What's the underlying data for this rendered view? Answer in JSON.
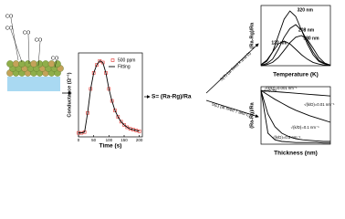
{
  "schematic": {
    "labels": [
      "CO",
      "CO",
      "CO",
      "CO",
      "CO"
    ]
  },
  "formula": "S= (Ra-Rg)/Ra",
  "arrows": [
    "S(T) (at fixed k and D)",
    "S(L) (at fixed T and C)"
  ],
  "chart_data": [
    {
      "type": "line",
      "xlabel": "Time (s)",
      "ylabel": "Conductance (Ω⁻¹)",
      "x": [
        0,
        10,
        20,
        30,
        40,
        50,
        60,
        70,
        80,
        90,
        100,
        110,
        120,
        130,
        140,
        150,
        160,
        170,
        180,
        190,
        200
      ],
      "xlim": [
        0,
        210
      ],
      "xticks": [
        0,
        50,
        100,
        150,
        200
      ],
      "ylim": [
        0,
        1.05
      ],
      "series": [
        {
          "name": "500 ppm",
          "color": "#e0302a",
          "marker": "square",
          "values": [
            0.05,
            0.05,
            0.06,
            0.3,
            0.6,
            0.8,
            0.9,
            0.95,
            0.93,
            0.8,
            0.6,
            0.45,
            0.33,
            0.25,
            0.19,
            0.15,
            0.12,
            0.1,
            0.09,
            0.08,
            0.07
          ]
        },
        {
          "name": "Fitting",
          "color": "#000000",
          "marker": "none",
          "values": [
            0.05,
            0.05,
            0.06,
            0.3,
            0.6,
            0.8,
            0.9,
            0.95,
            0.93,
            0.8,
            0.6,
            0.45,
            0.33,
            0.25,
            0.19,
            0.15,
            0.12,
            0.1,
            0.09,
            0.08,
            0.07
          ]
        }
      ]
    },
    {
      "type": "line",
      "xlabel": "Temperature (K)",
      "ylabel": "(Ra-Rg)/Ra",
      "x": [
        0,
        1,
        2,
        3,
        4,
        5,
        6,
        7,
        8,
        9,
        10,
        11,
        12
      ],
      "xlim": [
        0,
        12
      ],
      "ylim": [
        0,
        1.1
      ],
      "series": [
        {
          "name": "320 nm",
          "color": "#000000",
          "values": [
            0.02,
            0.08,
            0.25,
            0.55,
            0.85,
            1.0,
            0.9,
            0.65,
            0.4,
            0.2,
            0.08,
            0.03,
            0.01
          ]
        },
        {
          "name": "208 nm",
          "color": "#000000",
          "values": [
            0.01,
            0.04,
            0.12,
            0.3,
            0.52,
            0.68,
            0.75,
            0.65,
            0.45,
            0.25,
            0.1,
            0.04,
            0.01
          ]
        },
        {
          "name": "122 nm",
          "color": "#000000",
          "values": [
            0.02,
            0.1,
            0.25,
            0.4,
            0.45,
            0.4,
            0.3,
            0.2,
            0.12,
            0.06,
            0.03,
            0.01,
            0.01
          ]
        },
        {
          "name": "380 nm",
          "color": "#000000",
          "values": [
            0,
            0.02,
            0.06,
            0.15,
            0.28,
            0.42,
            0.52,
            0.55,
            0.48,
            0.32,
            0.15,
            0.05,
            0.01
          ]
        }
      ]
    },
    {
      "type": "line",
      "xlabel": "Thickness (nm)",
      "ylabel": "(Ra-Rg)/Ra",
      "annotation": "a=0.78",
      "x": [
        0,
        1,
        2,
        3,
        4,
        5,
        6,
        7,
        8,
        9,
        10
      ],
      "xlim": [
        0,
        10
      ],
      "ylim": [
        0,
        1.05
      ],
      "series": [
        {
          "name": "√(k/D)=0.001 nm⁻¹",
          "color": "#000000",
          "values": [
            0.98,
            0.97,
            0.96,
            0.95,
            0.94,
            0.93,
            0.92,
            0.91,
            0.9,
            0.89,
            0.88
          ]
        },
        {
          "name": "√(k/D)=0.01 nm⁻¹",
          "color": "#000000",
          "values": [
            0.98,
            0.9,
            0.82,
            0.75,
            0.68,
            0.62,
            0.57,
            0.52,
            0.48,
            0.44,
            0.4
          ]
        },
        {
          "name": "√(k/D)=0.1 nm⁻¹",
          "color": "#000000",
          "values": [
            0.98,
            0.55,
            0.32,
            0.2,
            0.14,
            0.1,
            0.08,
            0.07,
            0.06,
            0.05,
            0.05
          ]
        },
        {
          "name": "√(k/D)=0.5 nm⁻¹",
          "color": "#000000",
          "values": [
            0.98,
            0.2,
            0.08,
            0.05,
            0.04,
            0.03,
            0.03,
            0.03,
            0.03,
            0.02,
            0.02
          ]
        }
      ]
    }
  ]
}
